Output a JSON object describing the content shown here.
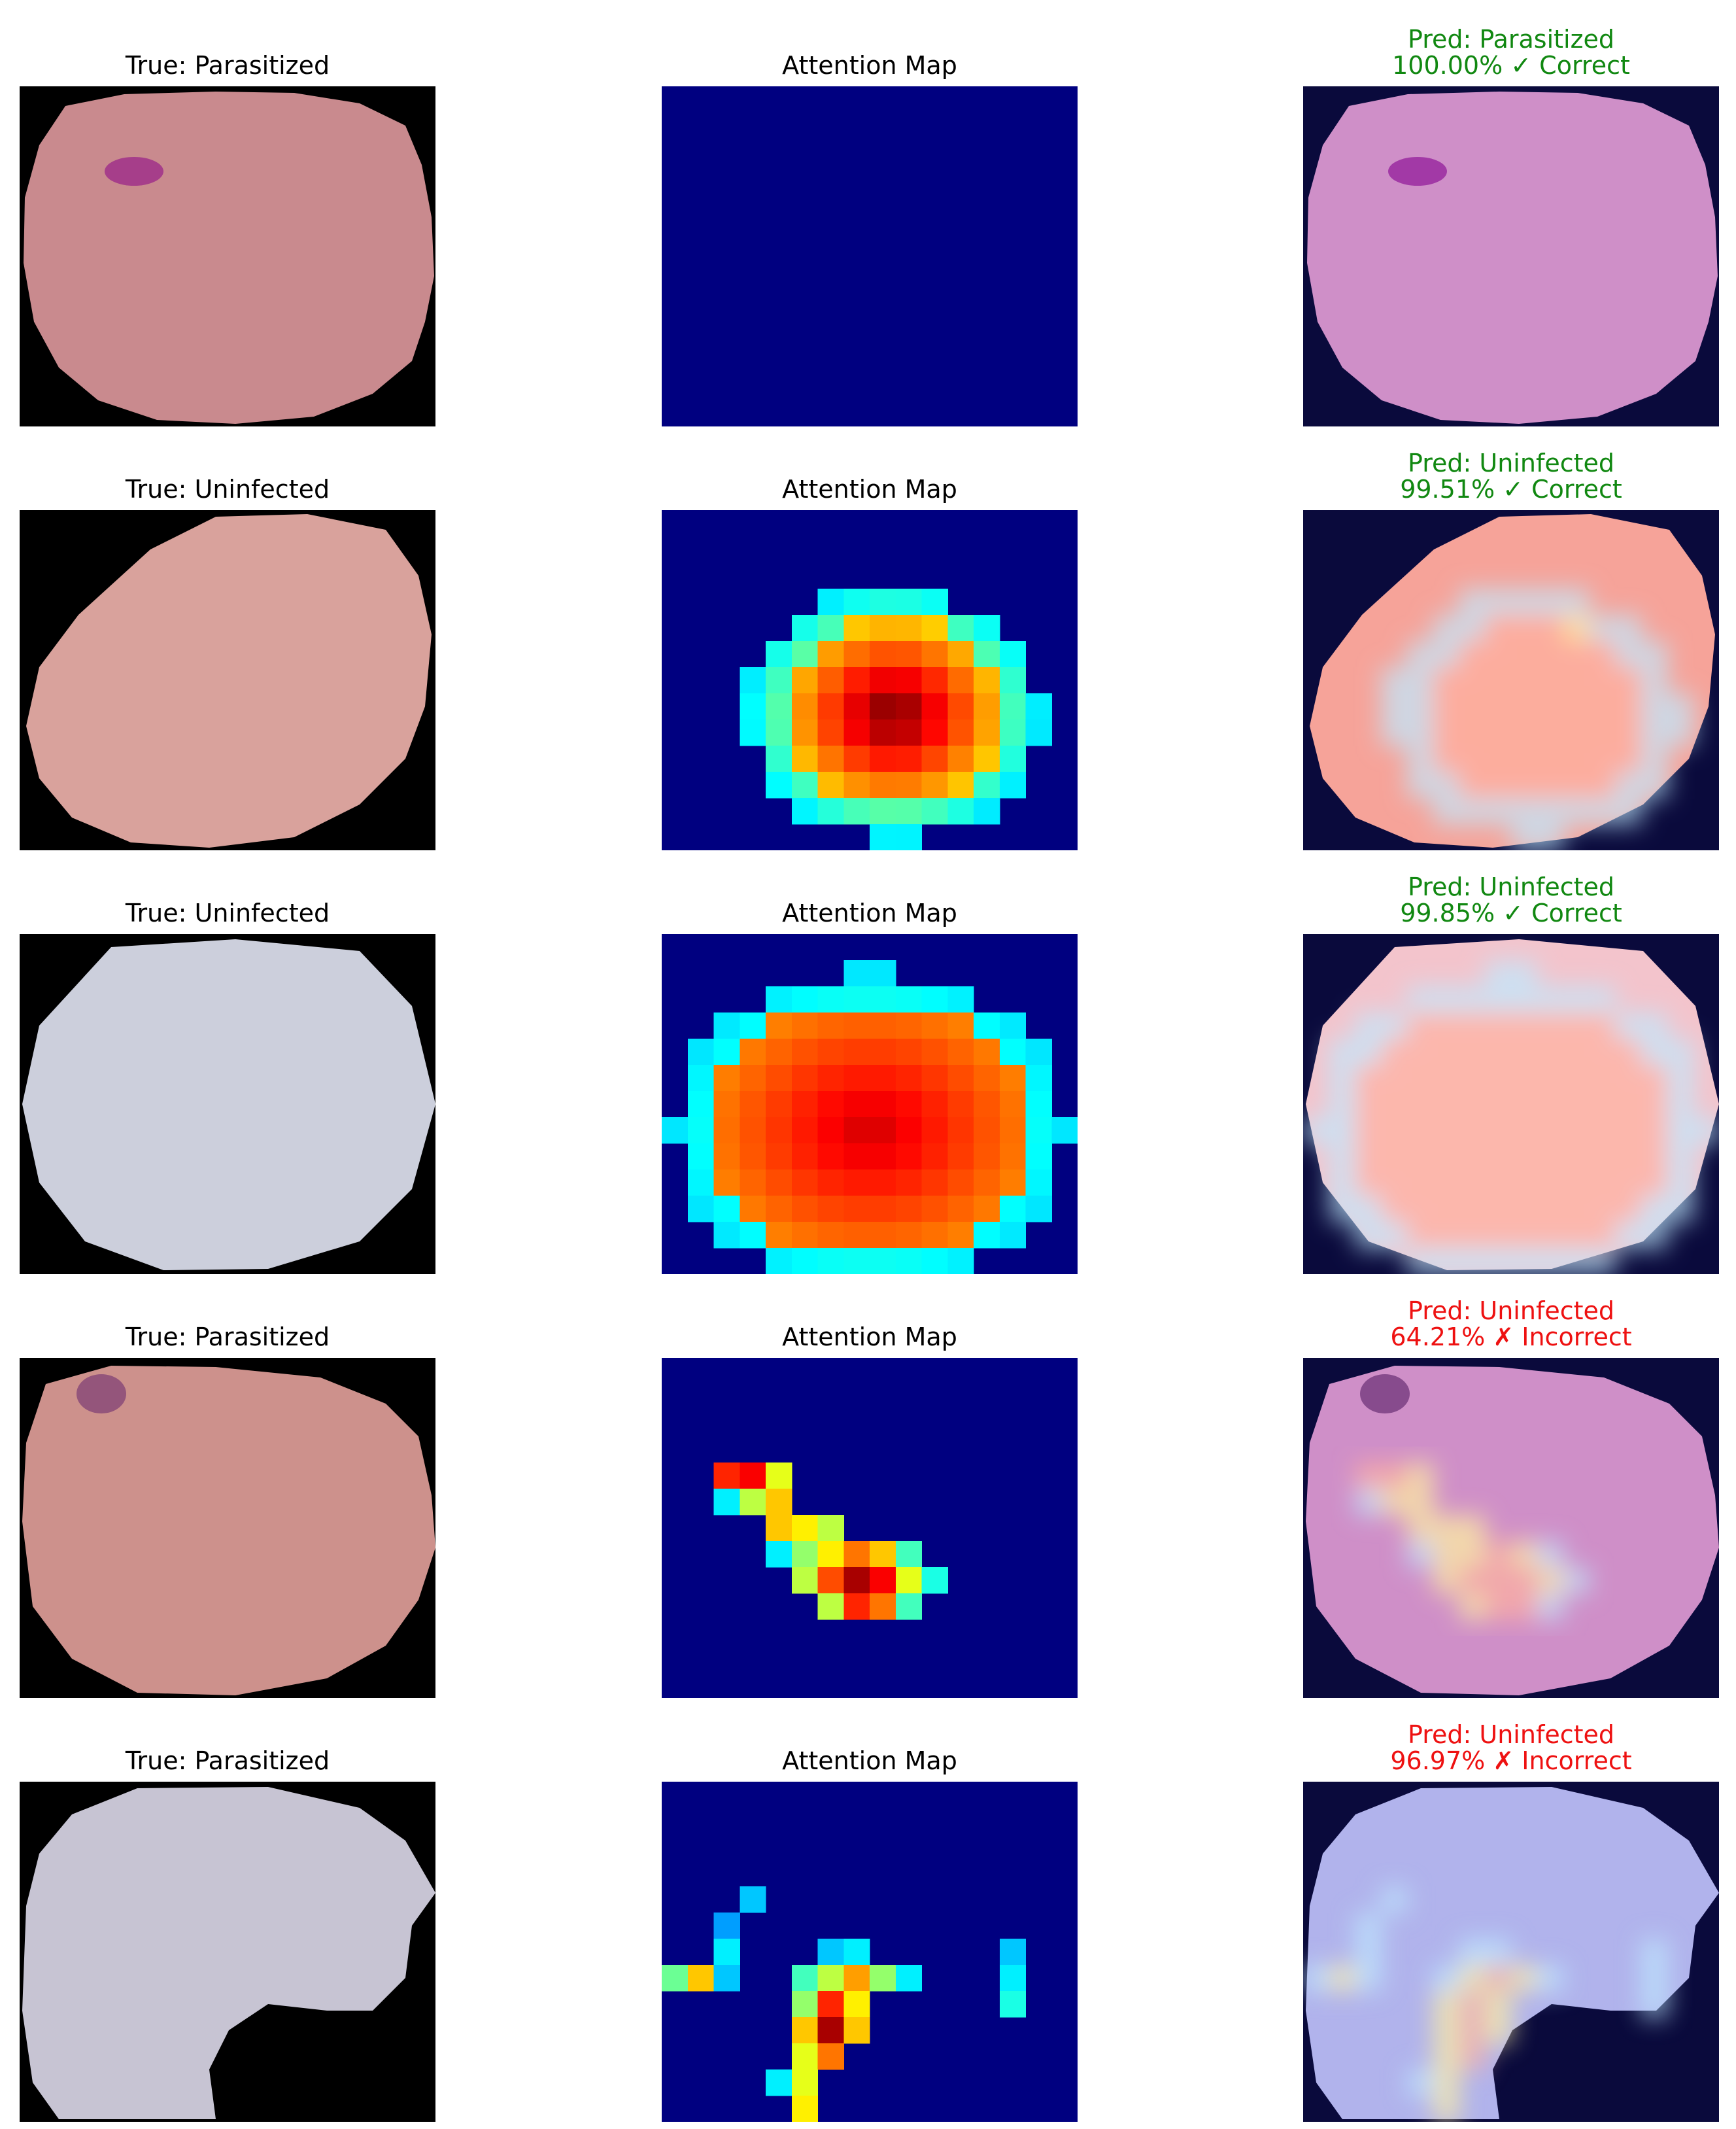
{
  "colors": {
    "correct": "#118811",
    "incorrect": "#ee1111",
    "background": "#000000",
    "attention_base": "#000080"
  },
  "rows": [
    {
      "true_label": "True: Parasitized",
      "attention_title": "Attention Map",
      "pred_line1": "Pred: Parasitized",
      "pred_line2": "100.00% ✓ Correct",
      "correct": true,
      "cell_color": "#c98a8e",
      "overlay_tint": "#cf8fc8",
      "has_parasite_spot": true,
      "attention": "none"
    },
    {
      "true_label": "True: Uninfected",
      "attention_title": "Attention Map",
      "pred_line1": "Pred: Uninfected",
      "pred_line2": "99.51% ✓ Correct",
      "correct": true,
      "cell_color": "#d9a29c",
      "overlay_tint": "#f6a399",
      "has_parasite_spot": false,
      "attention": "central-blob"
    },
    {
      "true_label": "True: Uninfected",
      "attention_title": "Attention Map",
      "pred_line1": "Pred: Uninfected",
      "pred_line2": "99.85% ✓ Correct",
      "correct": true,
      "cell_color": "#cccfdc",
      "overlay_tint": "#f3c4cc",
      "has_parasite_spot": false,
      "attention": "large-blob"
    },
    {
      "true_label": "True: Parasitized",
      "attention_title": "Attention Map",
      "pred_line1": "Pred: Uninfected",
      "pred_line2": "64.21% ✗ Incorrect",
      "correct": false,
      "cell_color": "#cd918c",
      "overlay_tint": "#cf8fc8",
      "has_parasite_spot": true,
      "attention": "diagonal-streak"
    },
    {
      "true_label": "True: Parasitized",
      "attention_title": "Attention Map",
      "pred_line1": "Pred: Uninfected",
      "pred_line2": "96.97% ✗ Incorrect",
      "correct": false,
      "cell_color": "#c7c4d3",
      "overlay_tint": "#b1b3ec",
      "has_parasite_spot": false,
      "attention": "sparse-v"
    }
  ]
}
